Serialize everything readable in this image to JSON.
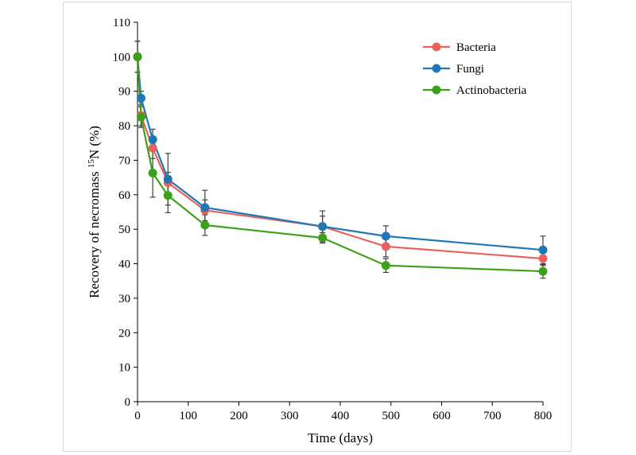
{
  "chart_data": {
    "type": "line",
    "title": "",
    "xlabel": "Time (days)",
    "ylabel_prefix": "Recovery of necromass ",
    "ylabel_sup": "15",
    "ylabel_suffix": "N (%)",
    "xlim": [
      0,
      800
    ],
    "ylim": [
      0,
      110
    ],
    "xticks": [
      0,
      100,
      200,
      300,
      400,
      500,
      600,
      700,
      800
    ],
    "yticks": [
      0,
      10,
      20,
      30,
      40,
      50,
      60,
      70,
      80,
      90,
      100,
      110
    ],
    "grid": false,
    "legend_position": "top-right",
    "series": [
      {
        "name": "Bacteria",
        "color": "#e8625e",
        "x": [
          0,
          7,
          30,
          60,
          133,
          365,
          490,
          800
        ],
        "y": [
          100,
          83,
          73.5,
          63.5,
          55.5,
          50.8,
          45,
          41.5
        ],
        "err": [
          4.5,
          3,
          3,
          3,
          3,
          3,
          3,
          2
        ]
      },
      {
        "name": "Fungi",
        "color": "#1f77b4",
        "x": [
          0,
          7,
          30,
          60,
          133,
          365,
          490,
          800
        ],
        "y": [
          100,
          88,
          76,
          64.5,
          56.3,
          50.8,
          48,
          44
        ],
        "err": [
          4.5,
          2,
          3,
          7.5,
          5,
          4.5,
          3,
          4
        ]
      },
      {
        "name": "Actinobacteria",
        "color": "#3ca018",
        "x": [
          0,
          7,
          30,
          60,
          133,
          365,
          490,
          800
        ],
        "y": [
          100,
          82.5,
          66.3,
          59.8,
          51.2,
          47.5,
          39.5,
          37.8
        ],
        "err": [
          4.5,
          3,
          7,
          5,
          3,
          1.5,
          2,
          2
        ]
      }
    ]
  }
}
